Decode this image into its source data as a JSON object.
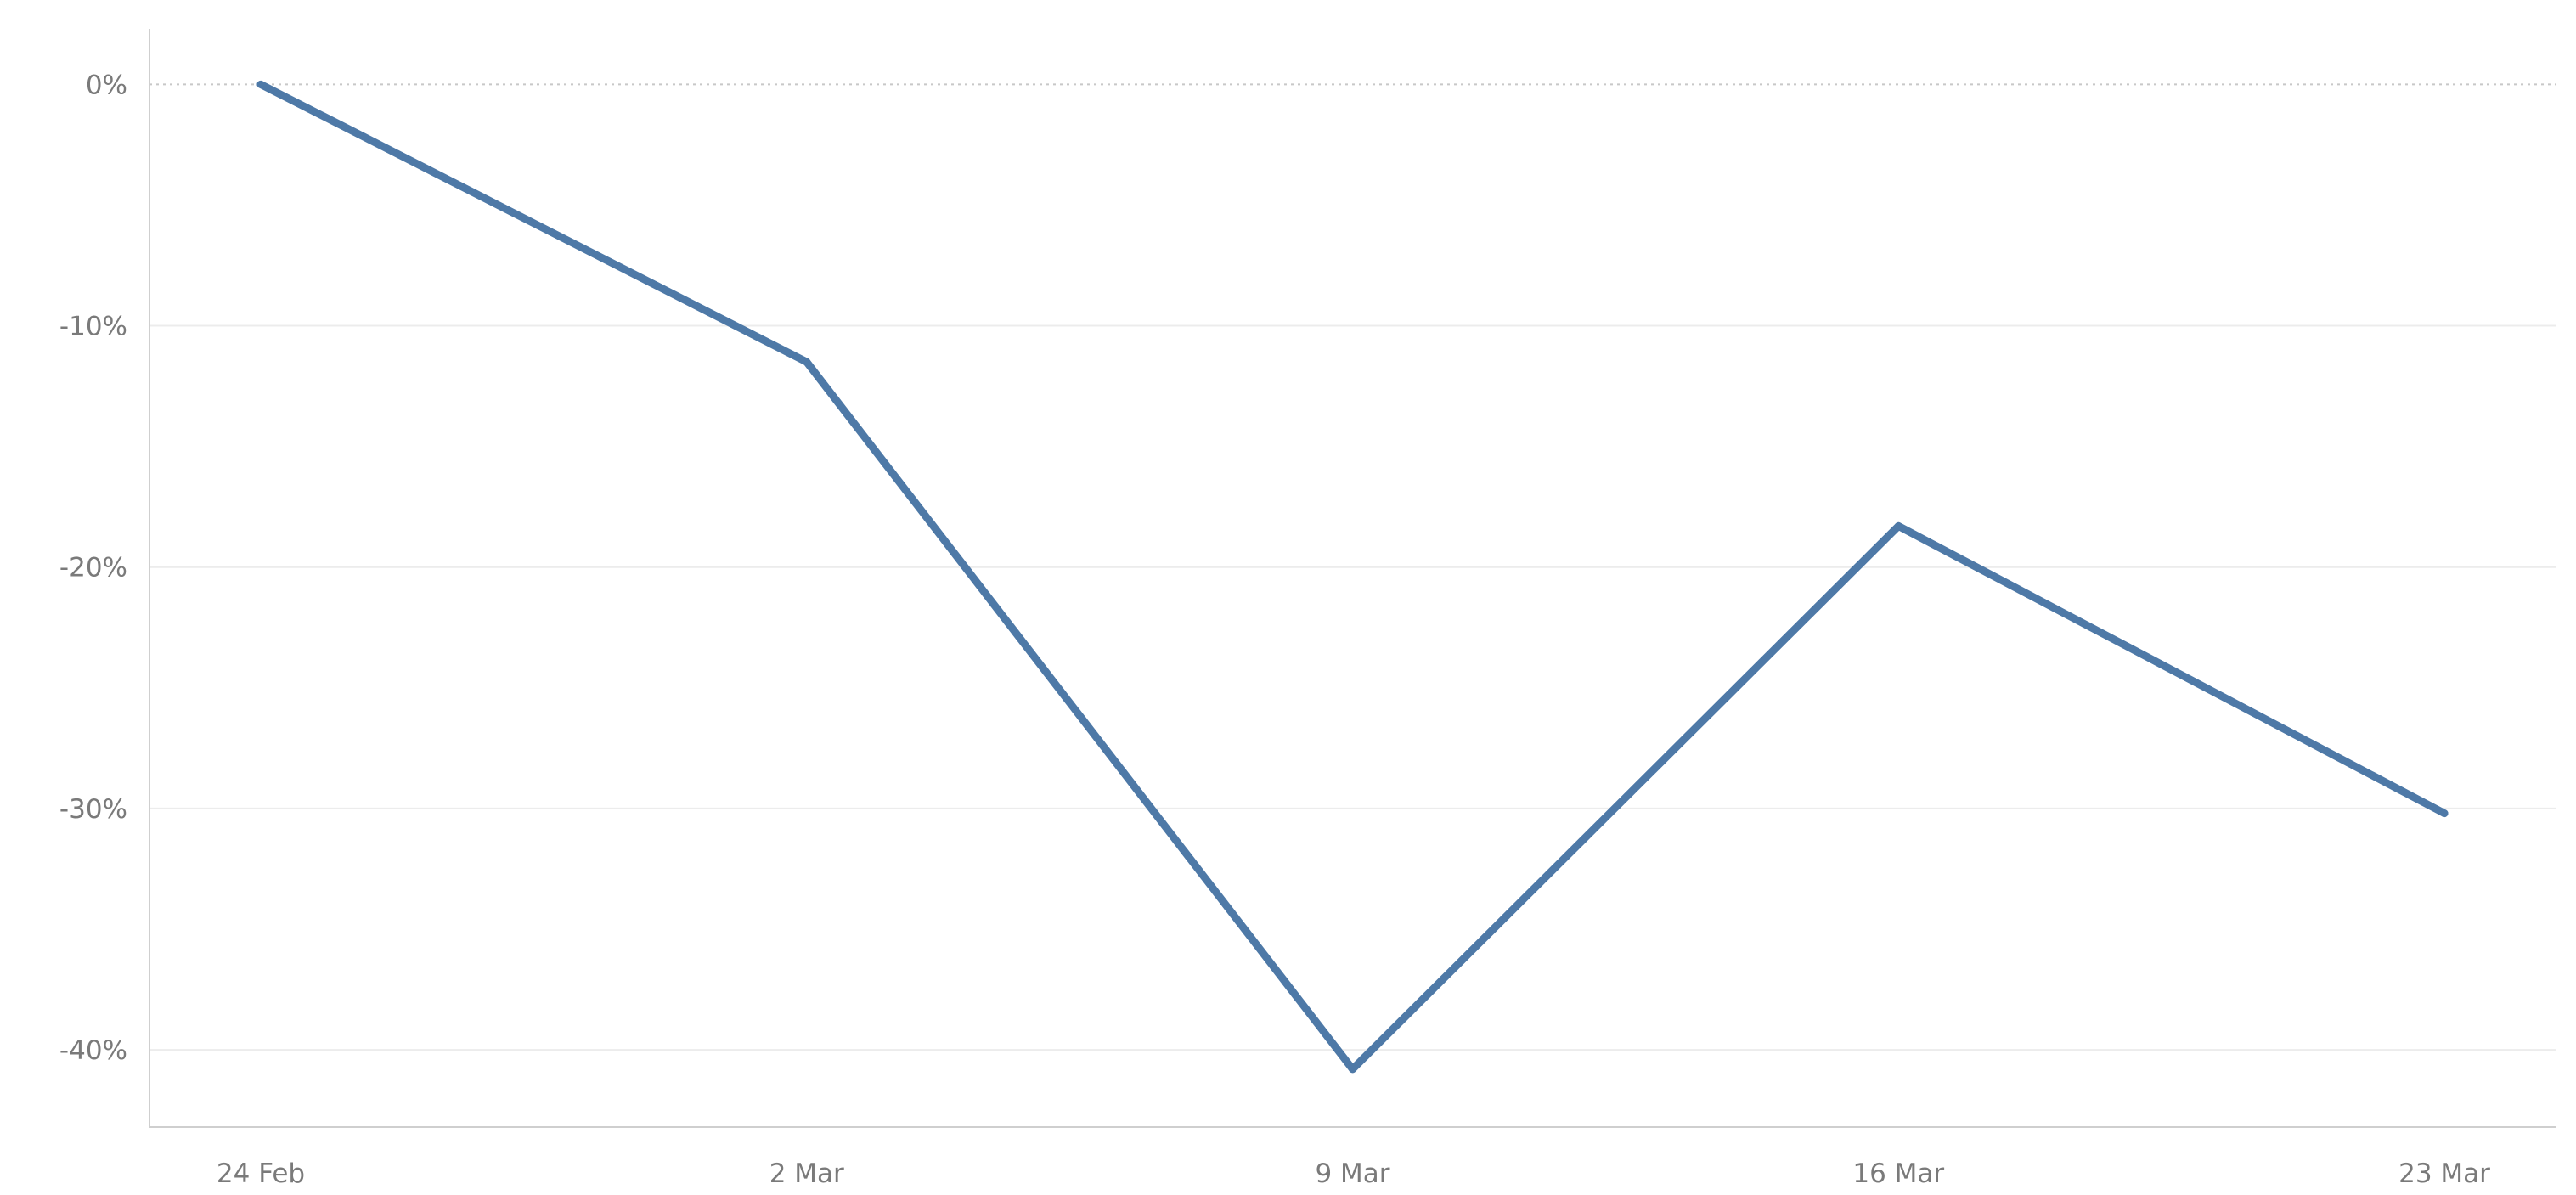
{
  "chart_data": {
    "type": "line",
    "title": "",
    "xlabel": "",
    "ylabel": "",
    "x": [
      "24 Feb",
      "2 Mar",
      "9 Mar",
      "16 Mar",
      "23 Mar"
    ],
    "series": [
      {
        "values": [
          0,
          -11.5,
          -40.8,
          -18.3,
          -30.2
        ]
      }
    ],
    "ylim": [
      -43.2,
      2.3
    ],
    "y_ticks": [
      0,
      -10,
      -20,
      -30,
      -40
    ],
    "y_tick_labels": [
      "0%",
      "-10%",
      "-20%",
      "-30%",
      "-40%"
    ],
    "x_tick_labels": [
      "24 Feb",
      "2 Mar",
      "9 Mar",
      "16 Mar",
      "23 Mar"
    ],
    "grid": true,
    "zero_line": "dotted",
    "legend": "none",
    "colors": {
      "line": "#4e79a7",
      "axis": "#cfcfcf",
      "grid": "#ececec",
      "zero_line": "#c8c8c8",
      "text": "#7a7a7a"
    }
  }
}
